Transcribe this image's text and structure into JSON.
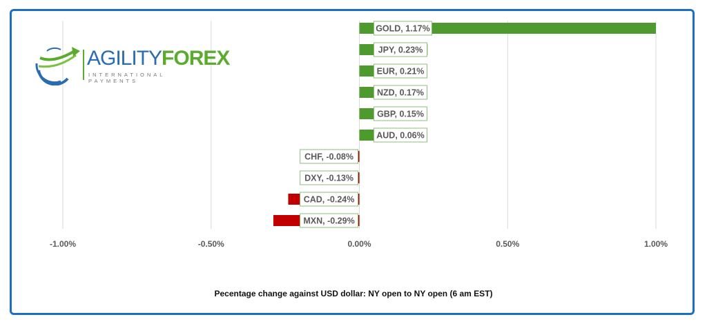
{
  "chart_data": {
    "type": "bar",
    "orientation": "horizontal",
    "title": "Pecentage change against USD dollar: NY open to  NY open  (6 am EST)",
    "categories": [
      "GOLD",
      "JPY",
      "EUR",
      "NZD",
      "GBP",
      "AUD",
      "CHF",
      "DXY",
      "CAD",
      "MXN"
    ],
    "values": [
      1.17,
      0.23,
      0.21,
      0.17,
      0.15,
      0.06,
      -0.08,
      -0.13,
      -0.24,
      -0.29
    ],
    "data_labels": [
      "GOLD, 1.17%",
      "JPY, 0.23%",
      "EUR, 0.21%",
      "NZD, 0.17%",
      "GBP, 0.15%",
      "AUD, 0.06%",
      "CHF, -0.08%",
      "DXY, -0.13%",
      "CAD, -0.24%",
      "MXN, -0.29%"
    ],
    "xlim": [
      -1.0,
      1.0
    ],
    "xticks": [
      -1.0,
      -0.5,
      0,
      0.5,
      1.0
    ],
    "xtick_labels": [
      "-1.00%",
      "-0.50%",
      "0.00%",
      "0.50%",
      "1.00%"
    ],
    "grid": true,
    "colors": {
      "positive": "#4e9a2e",
      "negative": "#c00000",
      "label_border": "#8bbf7a",
      "frame": "#1b6ec2"
    }
  },
  "logo": {
    "name_part1": "AGILITY",
    "name_part2": "FOREX",
    "tagline": "INTERNATIONAL PAYMENTS"
  }
}
